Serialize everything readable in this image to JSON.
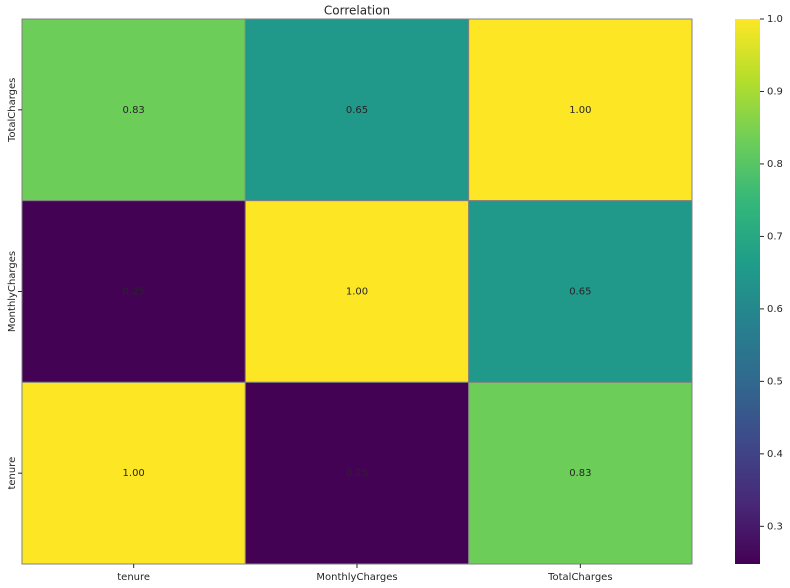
{
  "chart_data": {
    "type": "heatmap",
    "title": "Correlation",
    "x_categories": [
      "tenure",
      "MonthlyCharges",
      "TotalCharges"
    ],
    "y_categories": [
      "TotalCharges",
      "MonthlyCharges",
      "tenure"
    ],
    "values": [
      [
        0.83,
        0.65,
        1.0
      ],
      [
        0.25,
        1.0,
        0.65
      ],
      [
        1.0,
        0.25,
        0.83
      ]
    ],
    "value_labels": [
      [
        "0.83",
        "0.65",
        "1.00"
      ],
      [
        "0.25",
        "1.00",
        "0.65"
      ],
      [
        "1.00",
        "0.25",
        "0.83"
      ]
    ],
    "colormap": "viridis",
    "clim": [
      0.248,
      1.0
    ],
    "cticks": [
      0.3,
      0.4,
      0.5,
      0.6,
      0.7,
      0.8,
      0.9,
      {
        "value": 1.0,
        "label": "1.0"
      }
    ]
  }
}
